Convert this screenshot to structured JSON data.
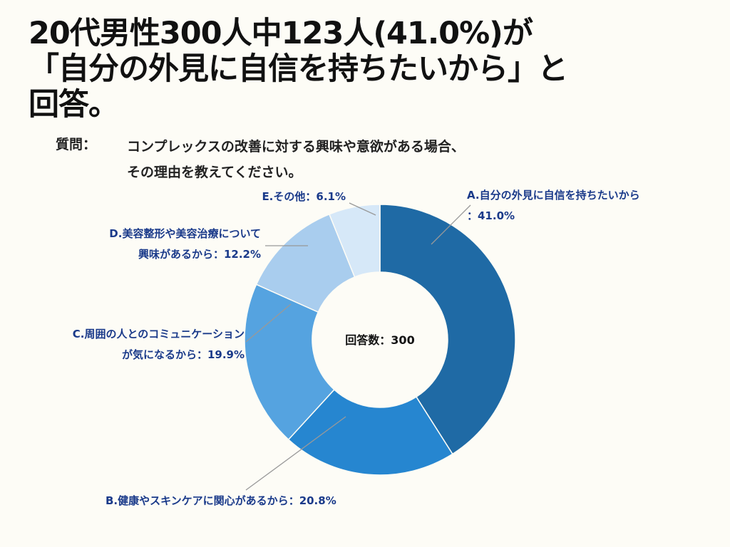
{
  "chart_data": {
    "type": "donut",
    "title": "20代男性300人中123人(41.0%)が\n「自分の外見に自信を持ちたいから」と\n回答。",
    "question_label": "質問：",
    "question": "コンプレックスの改善に対する興味や意欲がある場合、\nその理由を教えてください。",
    "center_label": "回答数：300",
    "categories": [
      "A.自分の外見に自信を持ちたいから",
      "B.健康やスキンケアに関心があるから",
      "C.周囲の人とのコミュニケーション\nが気になるから",
      "D.美容整形や美容治療について\n興味があるから",
      "E.その他"
    ],
    "values": [
      41.0,
      20.8,
      19.9,
      12.2,
      6.1
    ],
    "value_labels": [
      "：41.0%",
      "：20.8%",
      "：19.9%",
      "：12.2%",
      "：6.1%"
    ],
    "colors": [
      "#1f6aa5",
      "#2686d0",
      "#55a3e0",
      "#a9cdee",
      "#d6e8f8"
    ]
  }
}
